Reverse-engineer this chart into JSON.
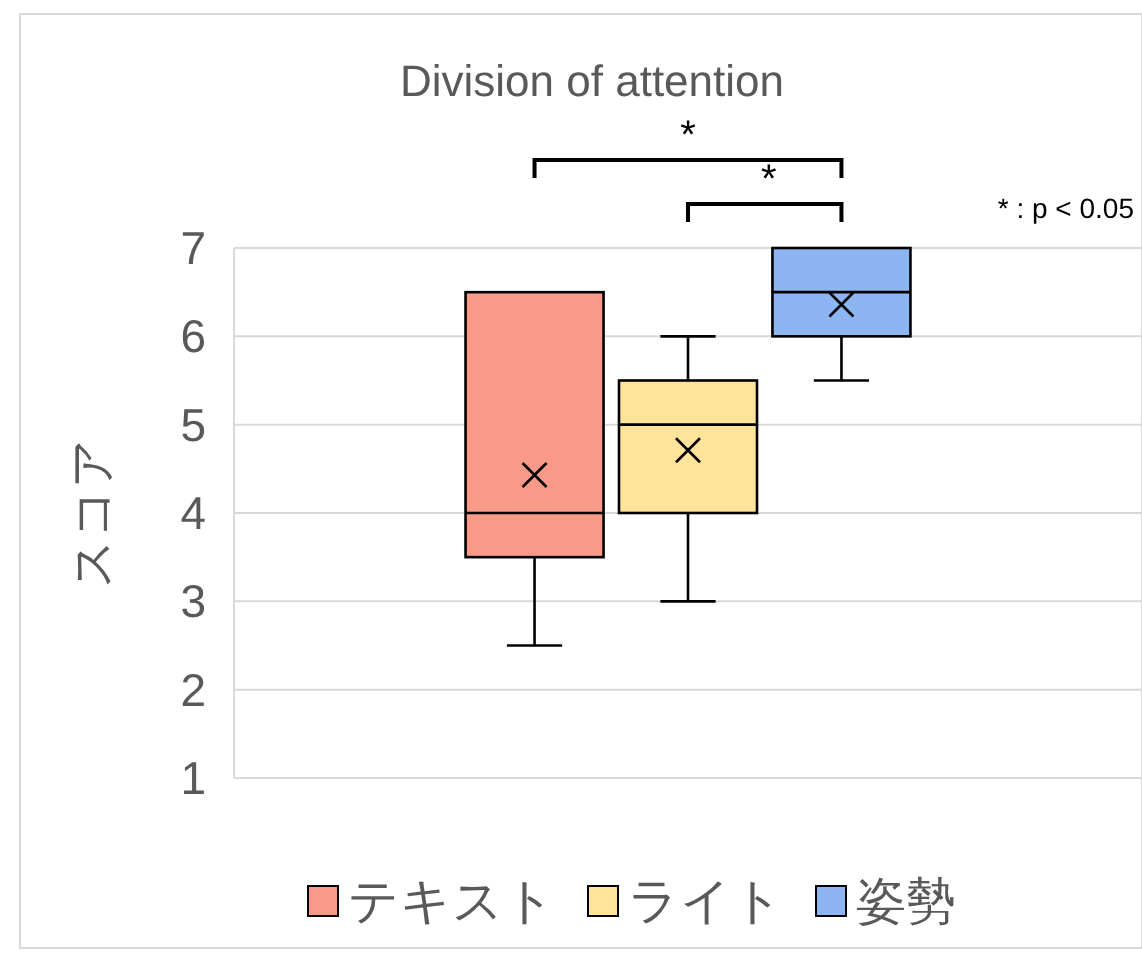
{
  "chart_data": {
    "type": "box",
    "title": "Division of attention",
    "ylabel": "スコア",
    "categories": [
      null
    ],
    "series": [
      {
        "name": "テキスト",
        "color": "#f99a89",
        "boxes": [
          {
            "low": 2.5,
            "q1": 3.5,
            "median": 4,
            "q3": 6.5,
            "high": 6.5,
            "mean": 4.43
          }
        ]
      },
      {
        "name": "ライト",
        "color": "#fee39b",
        "boxes": [
          {
            "low": 3,
            "q1": 4,
            "median": 5,
            "q3": 5.5,
            "high": 6,
            "mean": 4.71
          }
        ]
      },
      {
        "name": "姿勢",
        "color": "#8db5f1",
        "boxes": [
          {
            "low": 5.5,
            "q1": 6,
            "median": 6.5,
            "q3": 7,
            "high": 7,
            "mean": 6.36
          }
        ]
      }
    ],
    "ylim": [
      1,
      7
    ],
    "yticks": [
      1,
      2,
      3,
      4,
      5,
      6,
      7
    ],
    "grid": "y",
    "legend": "bottom",
    "annotations": [
      "*",
      "*",
      "* : p < 0.05"
    ]
  }
}
